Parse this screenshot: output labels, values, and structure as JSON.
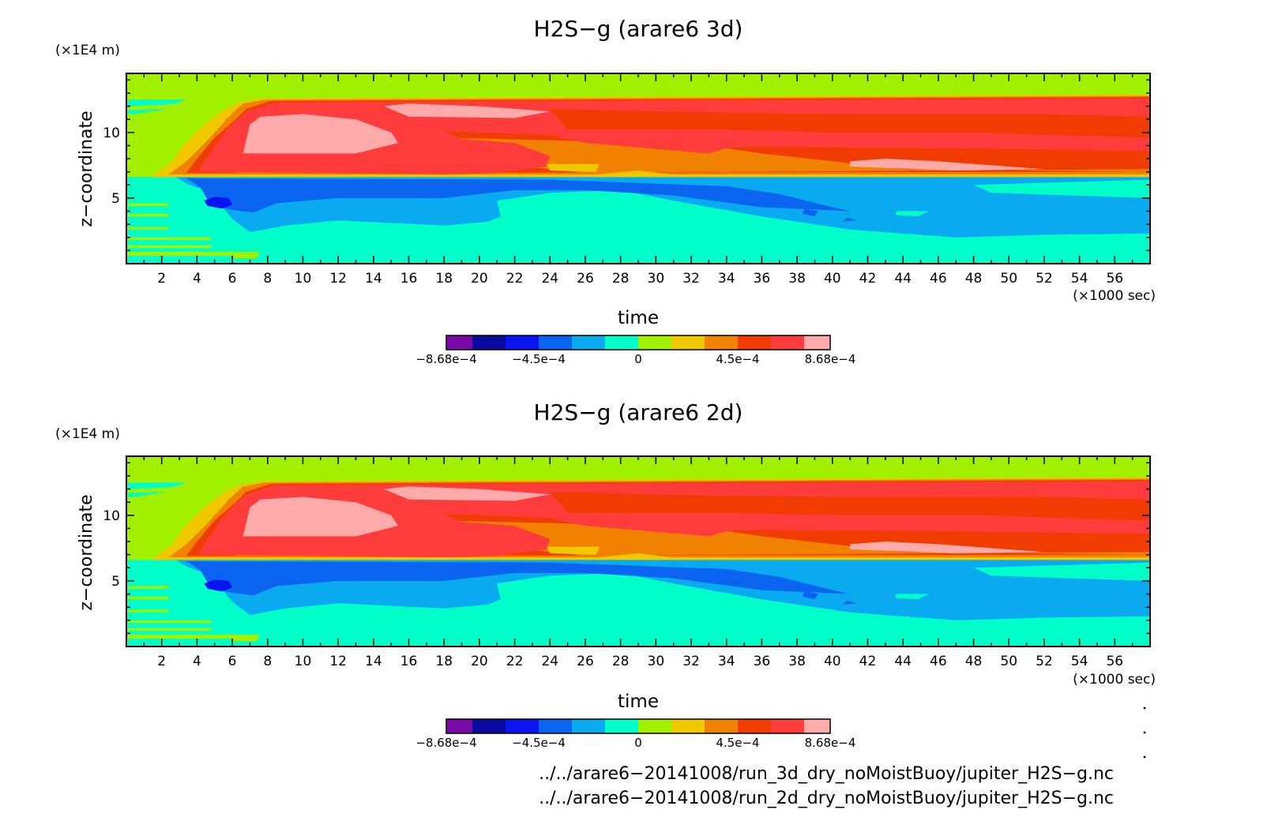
{
  "colors": [
    "#7a0aa8",
    "#0a0aa0",
    "#0a14f0",
    "#0a64f0",
    "#0aaaf0",
    "#00ffc8",
    "#a0f000",
    "#f0c800",
    "#f08200",
    "#f03c00",
    "#ff3c3c",
    "#ffaaaa"
  ],
  "chart_data": [
    {
      "type": "heatmap",
      "title": "H2S−g (arare6 3d)",
      "xlabel": "time",
      "ylabel": "z−coordinate",
      "x_unit": "(×1000 sec)",
      "y_unit": "(×1E4 m)",
      "xlim": [
        0,
        58
      ],
      "ylim": [
        0,
        14.5
      ],
      "x_ticks": [
        2,
        4,
        6,
        8,
        10,
        12,
        14,
        16,
        18,
        20,
        22,
        24,
        26,
        28,
        30,
        32,
        34,
        36,
        38,
        40,
        42,
        44,
        46,
        48,
        50,
        52,
        54,
        56
      ],
      "y_ticks": [
        5,
        10
      ],
      "colorbar": {
        "levels": [
          -0.000868,
          -0.00075,
          -0.0006,
          -0.00045,
          -0.0003,
          -0.00015,
          0,
          0.00015,
          0.0003,
          0.00045,
          0.0006,
          0.00075,
          0.000868
        ],
        "tick_labels": [
          "−8.68e−4",
          "−4.5e−4",
          "0",
          "4.5e−4",
          "8.68e−4"
        ],
        "tick_values": [
          -0.000868,
          -0.00045,
          0,
          0.00045,
          0.000868
        ]
      }
    },
    {
      "type": "heatmap",
      "title": "H2S−g (arare6 2d)",
      "xlabel": "time",
      "ylabel": "z−coordinate",
      "x_unit": "(×1000 sec)",
      "y_unit": "(×1E4 m)",
      "xlim": [
        0,
        58
      ],
      "ylim": [
        0,
        14.5
      ],
      "x_ticks": [
        2,
        4,
        6,
        8,
        10,
        12,
        14,
        16,
        18,
        20,
        22,
        24,
        26,
        28,
        30,
        32,
        34,
        36,
        38,
        40,
        42,
        44,
        46,
        48,
        50,
        52,
        54,
        56
      ],
      "y_ticks": [
        5,
        10
      ],
      "colorbar": {
        "levels": [
          -0.000868,
          -0.00075,
          -0.0006,
          -0.00045,
          -0.0003,
          -0.00015,
          0,
          0.00015,
          0.0003,
          0.00045,
          0.0006,
          0.00075,
          0.000868
        ],
        "tick_labels": [
          "−8.68e−4",
          "−4.5e−4",
          "0",
          "4.5e−4",
          "8.68e−4"
        ],
        "tick_values": [
          -0.000868,
          -0.00045,
          0,
          0.00045,
          0.000868
        ]
      }
    }
  ],
  "footer": {
    "line1": "../../arare6−20141008/run_3d_dry_noMoistBuoy/jupiter_H2S−g.nc",
    "line2": "../../arare6−20141008/run_2d_dry_noMoistBuoy/jupiter_H2S−g.nc"
  }
}
